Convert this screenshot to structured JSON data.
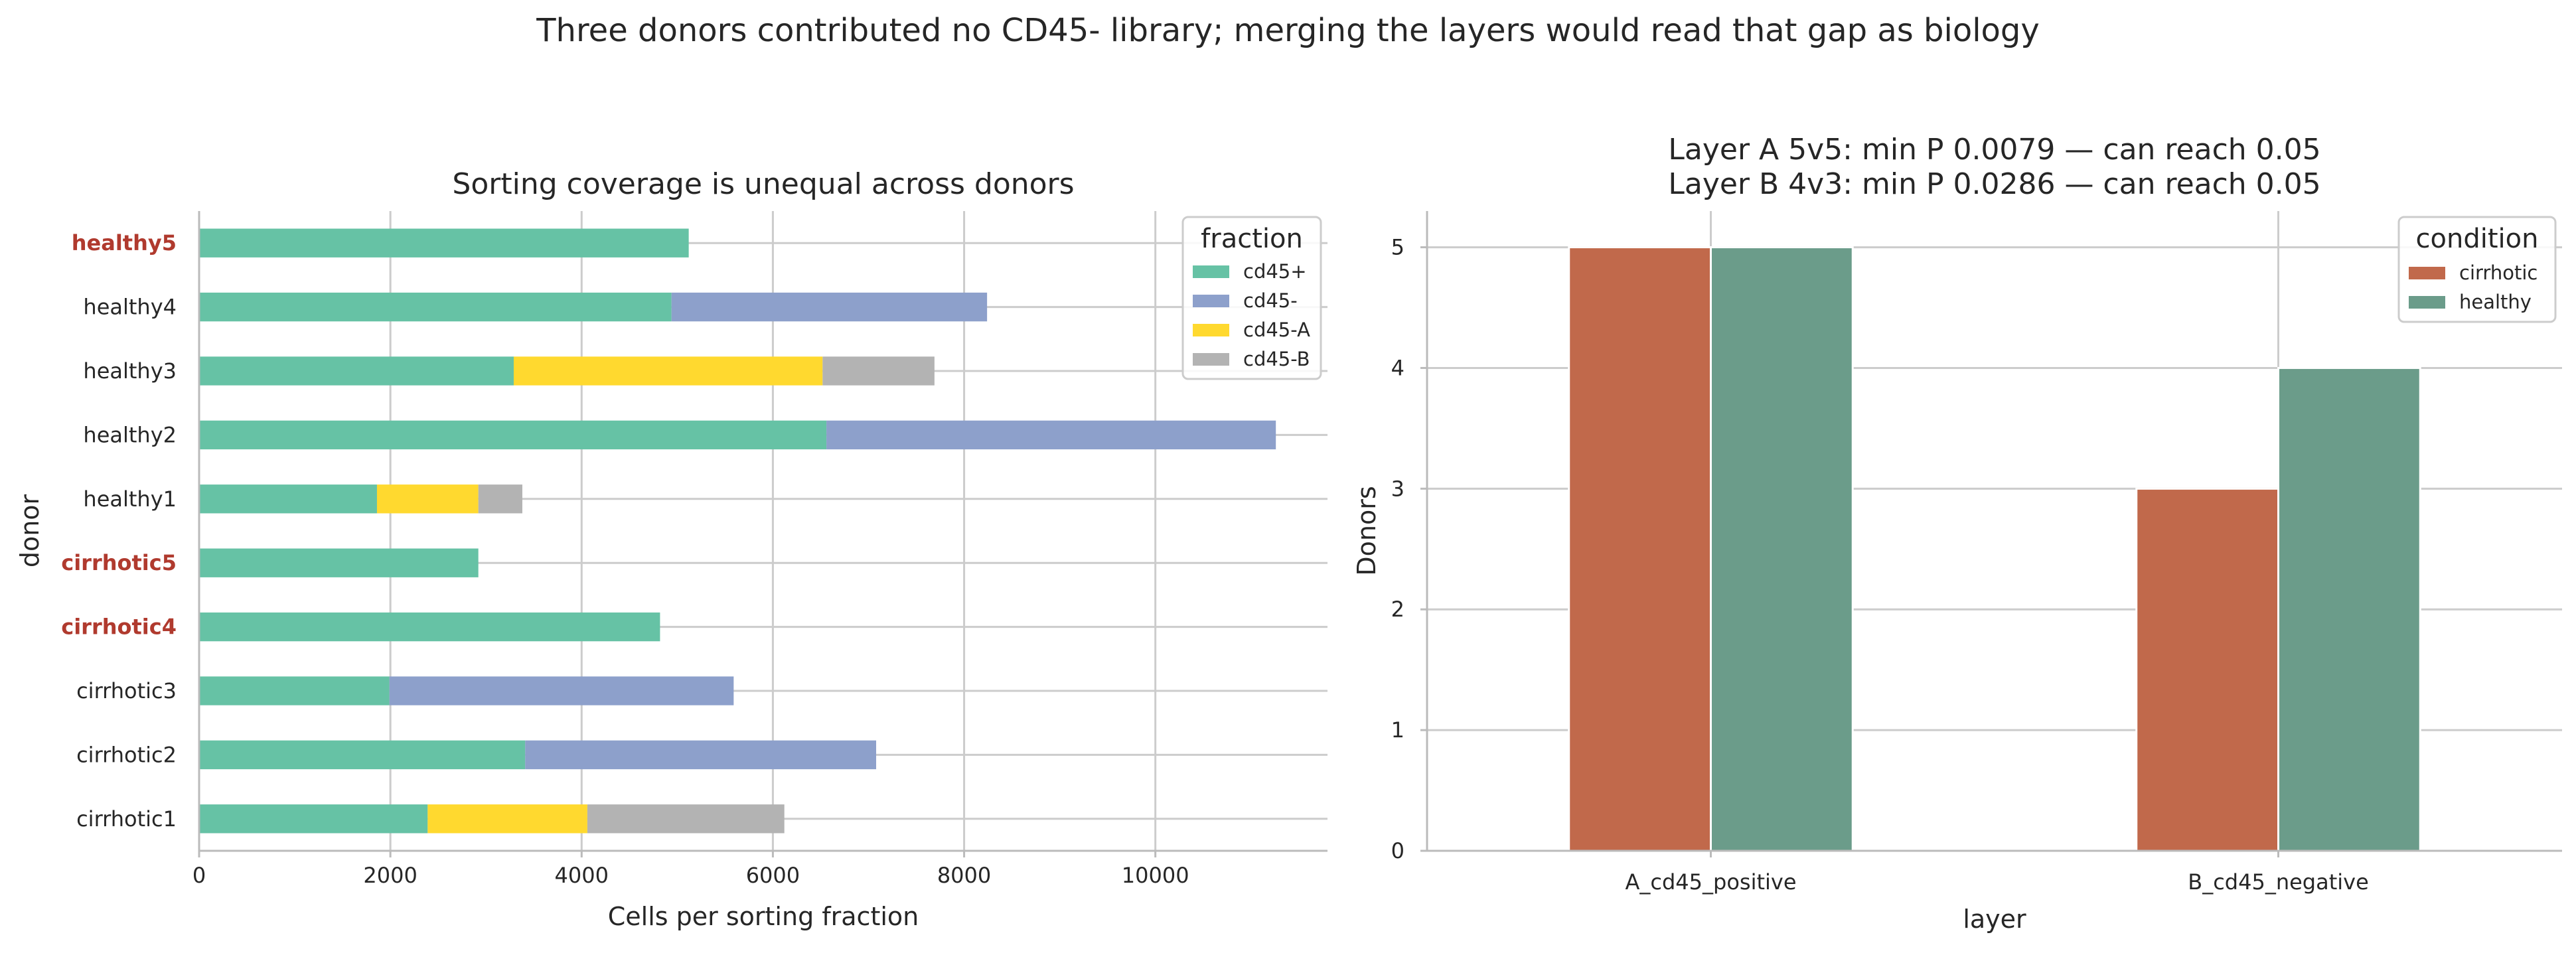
{
  "suptitle": "Three donors contributed no CD45- library; merging the layers would read that gap as biology",
  "chart_data": [
    {
      "type": "bar",
      "orientation": "horizontal",
      "stacked": true,
      "title": "Sorting coverage is unequal across donors",
      "xlabel": "Cells per sorting fraction",
      "ylabel": "donor",
      "xlim": [
        0,
        11800
      ],
      "xticks": [
        0,
        2000,
        4000,
        6000,
        8000,
        10000
      ],
      "grid": true,
      "legend": {
        "title": "fraction",
        "placement": "top-right"
      },
      "categories": [
        "cirrhotic1",
        "cirrhotic2",
        "cirrhotic3",
        "cirrhotic4",
        "cirrhotic5",
        "healthy1",
        "healthy2",
        "healthy3",
        "healthy4",
        "healthy5"
      ],
      "highlighted_categories": [
        "cirrhotic4",
        "cirrhotic5",
        "healthy5"
      ],
      "highlight_color": "#b03a2e",
      "series": [
        {
          "name": "cd45+",
          "color": "#66c2a5",
          "values": [
            2390,
            3410,
            1990,
            4820,
            2920,
            1860,
            6560,
            3290,
            4940,
            5120
          ]
        },
        {
          "name": "cd45-",
          "color": "#8da0cb",
          "values": [
            0,
            3670,
            3600,
            0,
            0,
            0,
            4700,
            0,
            3300,
            0
          ]
        },
        {
          "name": "cd45-A",
          "color": "#ffd92f",
          "values": [
            1670,
            0,
            0,
            0,
            0,
            1060,
            0,
            3230,
            0,
            0
          ]
        },
        {
          "name": "cd45-B",
          "color": "#b3b3b3",
          "values": [
            2060,
            0,
            0,
            0,
            0,
            460,
            0,
            1170,
            0,
            0
          ]
        }
      ]
    },
    {
      "type": "bar",
      "title_lines": [
        "Layer A 5v5: min P 0.0079 — can reach 0.05",
        "Layer B 4v3: min P 0.0286 — can reach 0.05"
      ],
      "xlabel": "layer",
      "ylabel": "Donors",
      "ylim": [
        0,
        5.3
      ],
      "yticks": [
        0,
        1,
        2,
        3,
        4,
        5
      ],
      "grid": true,
      "legend": {
        "title": "condition",
        "placement": "top-right"
      },
      "categories": [
        "A_cd45_positive",
        "B_cd45_negative"
      ],
      "series": [
        {
          "name": "cirrhotic",
          "color": "#c1694b",
          "values": [
            5,
            3
          ]
        },
        {
          "name": "healthy",
          "color": "#6b9c8a",
          "values": [
            5,
            4
          ]
        }
      ]
    }
  ]
}
